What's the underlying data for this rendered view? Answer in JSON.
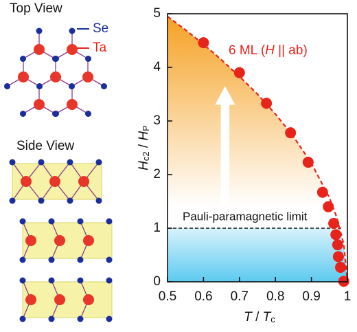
{
  "panel_labels": {
    "top_view": "Top View",
    "side_view": "Side View",
    "se": "Se",
    "ta": "Ta"
  },
  "chart_data": {
    "type": "scatter",
    "xlabel": [
      "T",
      " / ",
      "T",
      "c"
    ],
    "ylabel": [
      "H",
      "c2",
      " / ",
      "H",
      "P"
    ],
    "annotation": [
      "6 ML (",
      "H",
      " || ab)"
    ],
    "pauli_limit": {
      "value": 1,
      "label": "Pauli-paramagnetic limit"
    },
    "xlim": [
      0.5,
      1.0
    ],
    "xticks": [
      0.5,
      0.6,
      0.7,
      0.8,
      0.9,
      1.0
    ],
    "ylim": [
      0,
      5
    ],
    "yticks": [
      0,
      1,
      2,
      3,
      4,
      5
    ],
    "series": [
      {
        "color": "#e8231a",
        "x": [
          0.6,
          0.7,
          0.775,
          0.842,
          0.891,
          0.931,
          0.947,
          0.962,
          0.968,
          0.973,
          0.975,
          0.981,
          0.99
        ],
        "values": [
          4.46,
          3.9,
          3.33,
          2.78,
          2.23,
          1.67,
          1.4,
          1.09,
          0.88,
          0.69,
          0.47,
          0.27,
          0.01
        ]
      },
      {
        "color": "#e8231a",
        "dashed": true,
        "x": [
          0.5,
          0.55,
          0.6,
          0.65,
          0.7,
          0.75,
          0.8,
          0.85,
          0.9,
          0.95,
          0.97,
          0.99,
          1.0
        ],
        "values": [
          4.95,
          4.7,
          4.43,
          4.14,
          3.83,
          3.5,
          3.13,
          2.71,
          2.21,
          1.57,
          1.21,
          0.7,
          0
        ]
      }
    ]
  }
}
